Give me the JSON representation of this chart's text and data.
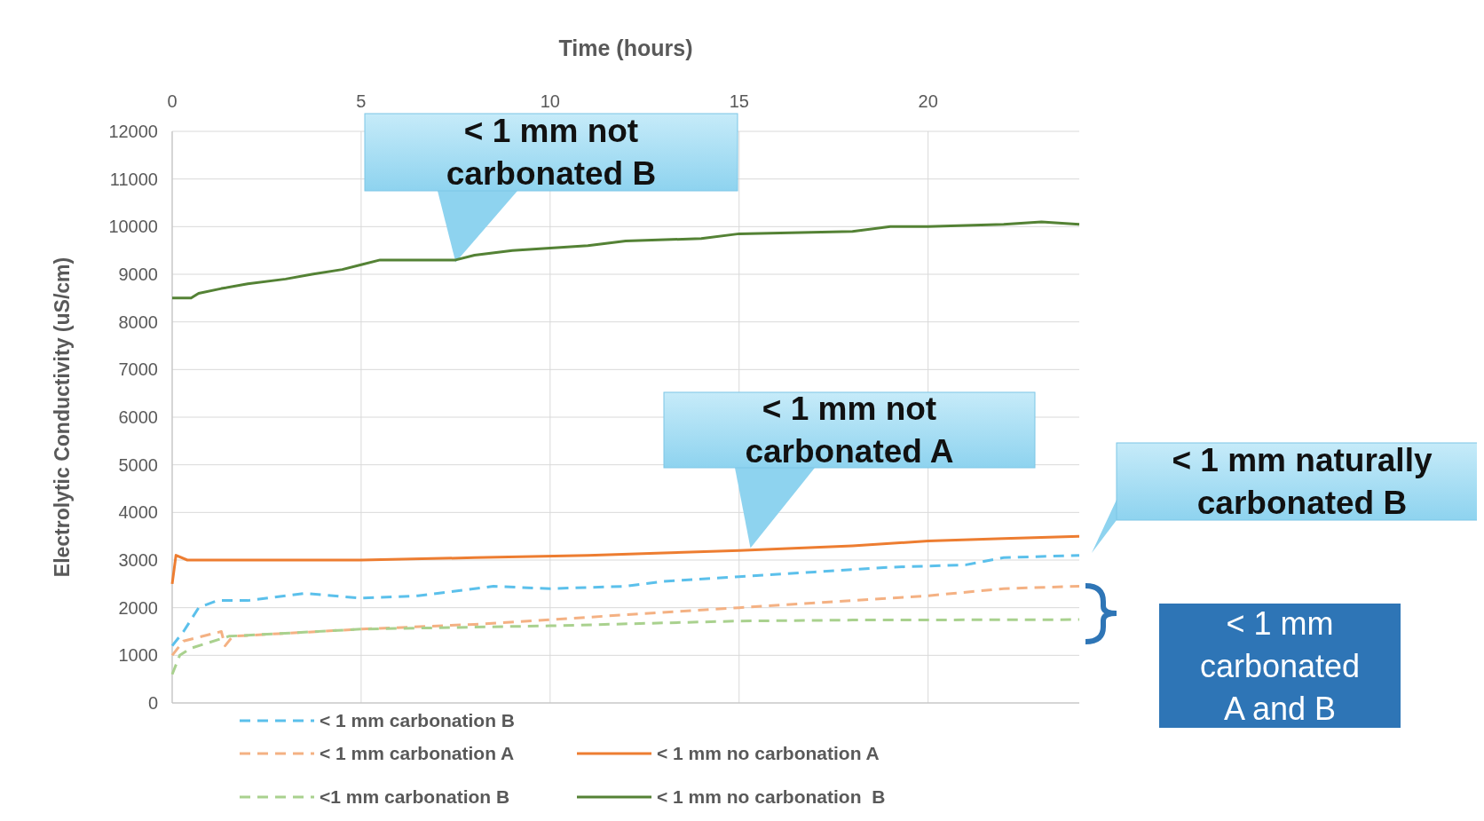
{
  "chart_data": {
    "type": "line",
    "xlabel": "Time (hours)",
    "ylabel": "Electrolytic Conductivity (uS/cm)",
    "xlim": [
      0,
      24
    ],
    "xticks": [
      0,
      5,
      10,
      15,
      20
    ],
    "ylim": [
      0,
      12000
    ],
    "yticks": [
      0,
      1000,
      2000,
      3000,
      4000,
      5000,
      6000,
      7000,
      8000,
      9000,
      10000,
      11000,
      12000
    ],
    "grid": true,
    "legend": "bottom",
    "series": [
      {
        "name": "< 1 mm carbonation B",
        "color": "#5bc0eb",
        "line_style": "dashed",
        "x": [
          0,
          0.3,
          0.7,
          1.2,
          2,
          3.5,
          5,
          6.5,
          8.5,
          10,
          12,
          13,
          15,
          17,
          19,
          21,
          22,
          24
        ],
        "values": [
          1200,
          1500,
          2000,
          2150,
          2150,
          2300,
          2200,
          2250,
          2450,
          2400,
          2450,
          2550,
          2650,
          2750,
          2850,
          2900,
          3050,
          3100
        ]
      },
      {
        "name": "< 1 mm carbonation A",
        "color": "#f4b183",
        "line_style": "dashed",
        "x": [
          0,
          0.3,
          1.3,
          1.4,
          1.6,
          5,
          8,
          10,
          12,
          15,
          18,
          20,
          22,
          24
        ],
        "values": [
          1000,
          1300,
          1500,
          1200,
          1400,
          1550,
          1650,
          1750,
          1850,
          2000,
          2150,
          2250,
          2400,
          2450
        ]
      },
      {
        "name": "<1 mm carbonation B",
        "color": "#a9d18e",
        "line_style": "dashed",
        "x": [
          0,
          0.2,
          0.5,
          1.5,
          5,
          10,
          13,
          15,
          18,
          24
        ],
        "values": [
          600,
          1000,
          1150,
          1400,
          1550,
          1620,
          1680,
          1720,
          1740,
          1750
        ]
      },
      {
        "name": "< 1 mm no carbonation A",
        "color": "#ed7d31",
        "line_style": "solid",
        "x": [
          0,
          0.1,
          0.4,
          5,
          8,
          11,
          13,
          15,
          18,
          20,
          22,
          24
        ],
        "values": [
          2500,
          3100,
          3000,
          3000,
          3050,
          3100,
          3150,
          3200,
          3300,
          3400,
          3450,
          3500
        ]
      },
      {
        "name": "< 1 mm no carbonation  B",
        "color": "#548235",
        "line_style": "solid",
        "x": [
          0,
          0.5,
          0.7,
          1.3,
          2,
          3,
          3.7,
          4.5,
          5,
          5.5,
          7.5,
          8,
          9,
          10,
          11,
          12,
          14,
          15,
          18,
          19,
          20,
          22,
          23,
          24
        ],
        "values": [
          8500,
          8500,
          8600,
          8700,
          8800,
          8900,
          9000,
          9100,
          9200,
          9300,
          9300,
          9400,
          9500,
          9550,
          9600,
          9700,
          9750,
          9850,
          9900,
          10000,
          10000,
          10050,
          10100,
          10050
        ]
      }
    ],
    "annotations": [
      {
        "text": "< 1 mm not carbonated B",
        "x": 7.5,
        "y": 9250
      },
      {
        "text": "< 1 mm not carbonated A",
        "x": 15.3,
        "y": 3250
      },
      "< 1 mm naturally carbonated B",
      "< 1 mm carbonated A and B"
    ]
  }
}
